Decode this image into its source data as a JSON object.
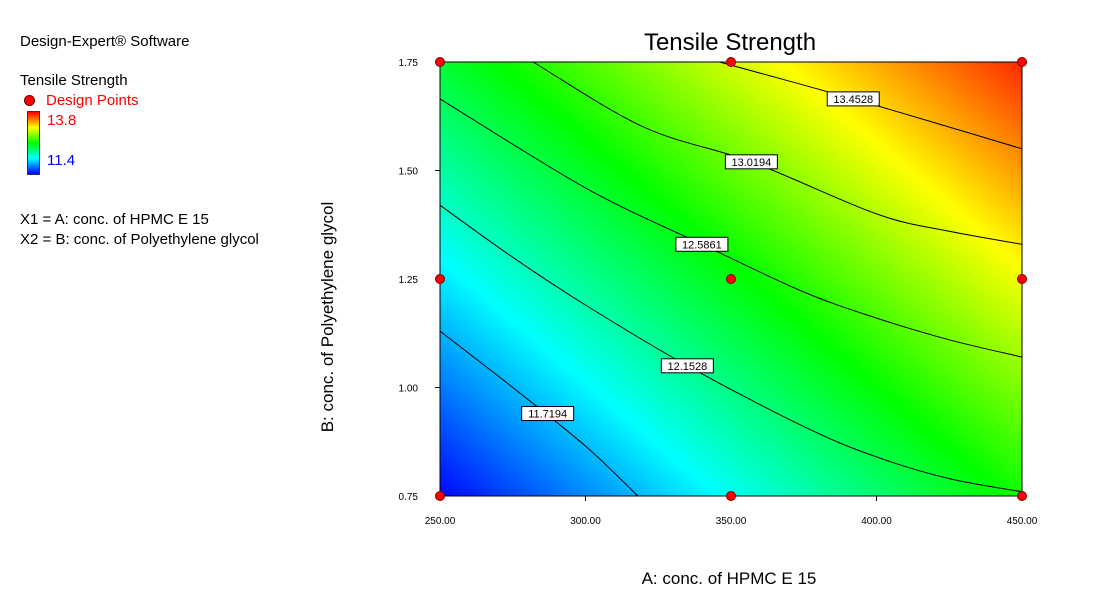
{
  "software": "Design-Expert® Software",
  "legend": {
    "response": "Tensile Strength",
    "design_points_label": "Design Points",
    "high_value": "13.8",
    "low_value": "11.4",
    "high_color": "#ff0000",
    "low_color": "#0000ff"
  },
  "factors": {
    "x1": "X1 = A: conc. of HPMC E 15",
    "x2": "X2 = B: conc. of Polyethylene glycol"
  },
  "chart_data": {
    "type": "heatmap",
    "subtype": "contour",
    "title": "Tensile Strength",
    "xlabel": "A: conc. of HPMC E 15",
    "ylabel": "B: conc. of Polyethylene glycol",
    "xlim": [
      250,
      450
    ],
    "ylim": [
      0.75,
      1.75
    ],
    "x_ticks": [
      "250.00",
      "300.00",
      "350.00",
      "400.00",
      "450.00"
    ],
    "y_ticks": [
      "0.75",
      "1.00",
      "1.25",
      "1.50",
      "1.75"
    ],
    "colormap": [
      "#0000ff",
      "#00ffff",
      "#00ff00",
      "#ffff00",
      "#ff0000"
    ],
    "color_range": [
      11.4,
      13.8
    ],
    "contours": [
      {
        "level": 11.7194,
        "label": "11.7194",
        "label_at": [
          287,
          0.94
        ],
        "points": [
          [
            250,
            1.13
          ],
          [
            275,
            1.0
          ],
          [
            300,
            0.865
          ],
          [
            318,
            0.75
          ]
        ]
      },
      {
        "level": 12.1528,
        "label": "12.1528",
        "label_at": [
          335,
          1.05
        ],
        "points": [
          [
            250,
            1.42
          ],
          [
            275,
            1.3
          ],
          [
            300,
            1.19
          ],
          [
            335,
            1.05
          ],
          [
            375,
            0.91
          ],
          [
            400,
            0.84
          ],
          [
            425,
            0.79
          ],
          [
            450,
            0.76
          ]
        ]
      },
      {
        "level": 12.5861,
        "label": "12.5861",
        "label_at": [
          340,
          1.33
        ],
        "points": [
          [
            250,
            1.665
          ],
          [
            300,
            1.46
          ],
          [
            340,
            1.33
          ],
          [
            375,
            1.22
          ],
          [
            400,
            1.16
          ],
          [
            425,
            1.11
          ],
          [
            450,
            1.07
          ]
        ]
      },
      {
        "level": 13.0194,
        "label": "13.0194",
        "label_at": [
          357,
          1.52
        ],
        "points": [
          [
            282,
            1.75
          ],
          [
            320,
            1.6
          ],
          [
            357,
            1.52
          ],
          [
            400,
            1.4
          ],
          [
            425,
            1.36
          ],
          [
            450,
            1.33
          ]
        ]
      },
      {
        "level": 13.4528,
        "label": "13.4528",
        "label_at": [
          392,
          1.665
        ],
        "points": [
          [
            346,
            1.75
          ],
          [
            392,
            1.665
          ],
          [
            425,
            1.6
          ],
          [
            450,
            1.55
          ]
        ]
      }
    ],
    "design_points": [
      {
        "x": 250,
        "y": 0.75
      },
      {
        "x": 350,
        "y": 0.75
      },
      {
        "x": 450,
        "y": 0.75
      },
      {
        "x": 250,
        "y": 1.25
      },
      {
        "x": 350,
        "y": 1.25
      },
      {
        "x": 450,
        "y": 1.25
      },
      {
        "x": 250,
        "y": 1.75
      },
      {
        "x": 350,
        "y": 1.75
      },
      {
        "x": 450,
        "y": 1.75
      }
    ],
    "grid": false,
    "legend_position": "left"
  }
}
